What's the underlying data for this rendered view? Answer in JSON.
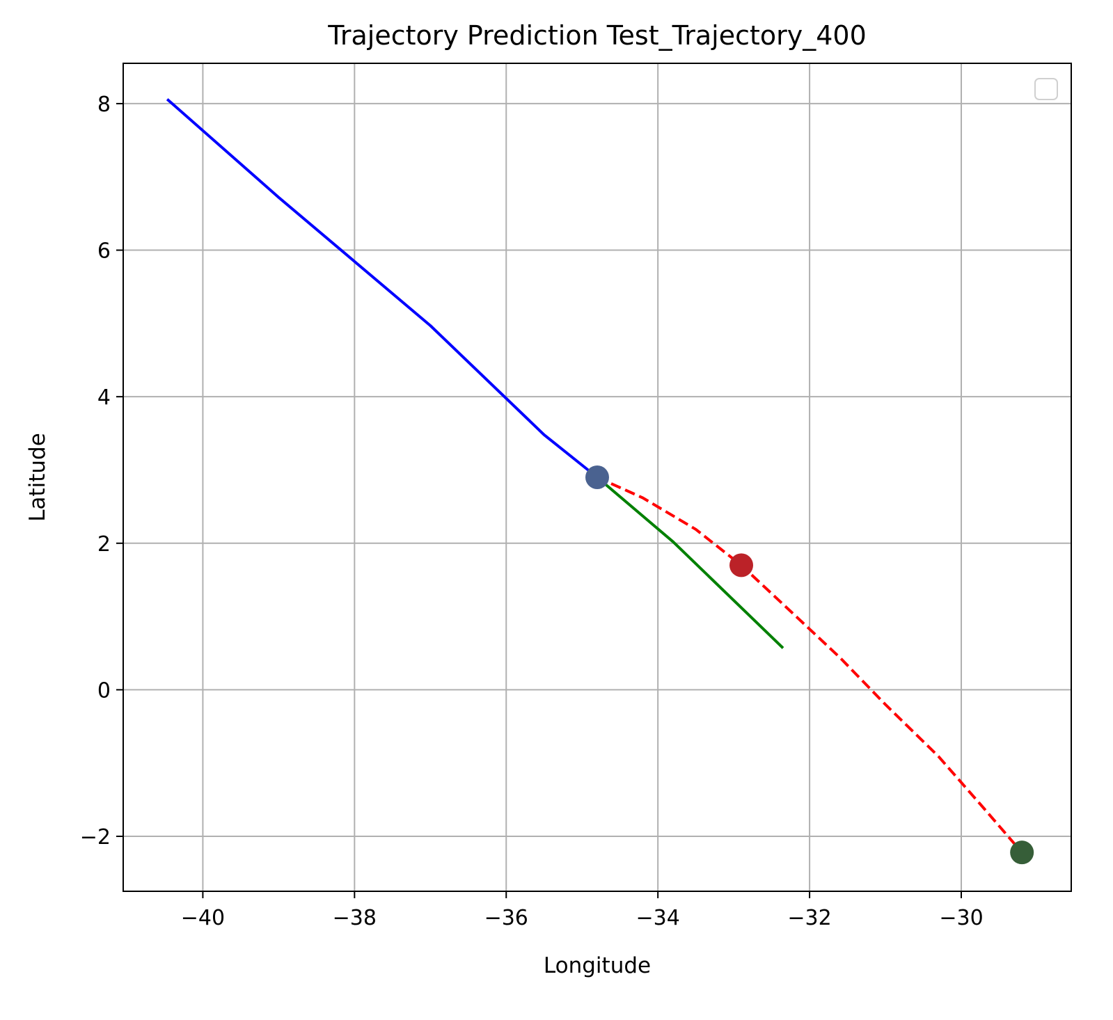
{
  "chart_data": {
    "type": "line",
    "title": "Trajectory Prediction Test_Trajectory_400",
    "xlabel": "Longitude",
    "ylabel": "Latitude",
    "xlim": [
      -41.05,
      -28.55
    ],
    "ylim": [
      -2.75,
      8.55
    ],
    "xticks": [
      -40,
      -38,
      -36,
      -34,
      -32,
      -30
    ],
    "xtick_labels": [
      "−40",
      "−38",
      "−36",
      "−34",
      "−32",
      "−30"
    ],
    "yticks": [
      -2,
      0,
      2,
      4,
      6,
      8
    ],
    "ytick_labels": [
      "−2",
      "0",
      "2",
      "4",
      "6",
      "8"
    ],
    "grid": true,
    "legend": {
      "placement": "top-right",
      "entries": []
    },
    "series": [
      {
        "color": "#0000ff",
        "style": "solid",
        "x": [
          -40.47,
          -39.0,
          -37.0,
          -35.5,
          -34.8
        ],
        "y": [
          8.06,
          6.72,
          4.97,
          3.48,
          2.9
        ]
      },
      {
        "color": "#008000",
        "style": "solid",
        "x": [
          -34.8,
          -33.8,
          -32.35
        ],
        "y": [
          2.9,
          2.02,
          0.57
        ]
      },
      {
        "color": "#ff0000",
        "style": "dashed",
        "x": [
          -34.8,
          -34.2,
          -33.5,
          -32.9,
          -32.3,
          -31.6,
          -31.0,
          -30.3,
          -29.7,
          -29.2
        ],
        "y": [
          2.9,
          2.62,
          2.19,
          1.7,
          1.12,
          0.44,
          -0.2,
          -0.91,
          -1.62,
          -2.22
        ]
      }
    ],
    "markers": [
      {
        "color": "#4a6290",
        "x": -34.8,
        "y": 2.9
      },
      {
        "color": "#bb2228",
        "x": -32.9,
        "y": 1.7
      },
      {
        "color": "#365e38",
        "x": -29.2,
        "y": -2.22
      }
    ]
  }
}
